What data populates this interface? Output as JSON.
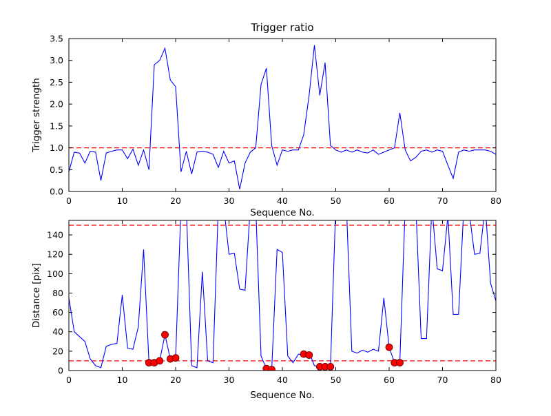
{
  "figure": {
    "background": "#ffffff"
  },
  "chart_data": [
    {
      "type": "line",
      "title": "Trigger ratio",
      "xlabel": "Sequence No.",
      "ylabel": "Trigger strength",
      "xlim": [
        0,
        80
      ],
      "ylim": [
        0,
        3.5
      ],
      "grid": false,
      "legend": "none",
      "line_color": "#0000ff",
      "threshold_color": "#ff0000",
      "hlines": [
        1.0
      ],
      "xticks": [
        0,
        10,
        20,
        30,
        40,
        50,
        60,
        70,
        80
      ],
      "xtick_labels": [
        "0",
        "10",
        "20",
        "30",
        "40",
        "50",
        "60",
        "70",
        "80"
      ],
      "yticks": [
        0,
        0.5,
        1,
        1.5,
        2,
        2.5,
        3,
        3.5
      ],
      "ytick_labels": [
        "0.0",
        "0.5",
        "1.0",
        "1.5",
        "2.0",
        "2.5",
        "3.0",
        "3.5"
      ],
      "x": [
        0,
        1,
        2,
        3,
        4,
        5,
        6,
        7,
        8,
        9,
        10,
        11,
        12,
        13,
        14,
        15,
        16,
        17,
        18,
        19,
        20,
        21,
        22,
        23,
        24,
        25,
        26,
        27,
        28,
        29,
        30,
        31,
        32,
        33,
        34,
        35,
        36,
        37,
        38,
        39,
        40,
        41,
        42,
        43,
        44,
        45,
        46,
        47,
        48,
        49,
        50,
        51,
        52,
        53,
        54,
        55,
        56,
        57,
        58,
        59,
        60,
        61,
        62,
        63,
        64,
        65,
        66,
        67,
        68,
        69,
        70,
        71,
        72,
        73,
        74,
        75,
        76,
        77,
        78,
        79,
        80
      ],
      "y": [
        0.45,
        0.9,
        0.88,
        0.65,
        0.92,
        0.9,
        0.25,
        0.88,
        0.92,
        0.95,
        0.95,
        0.75,
        0.97,
        0.6,
        0.95,
        0.5,
        2.9,
        3.0,
        3.28,
        2.55,
        2.4,
        0.45,
        0.92,
        0.4,
        0.9,
        0.92,
        0.9,
        0.85,
        0.55,
        0.92,
        0.65,
        0.7,
        0.05,
        0.65,
        0.9,
        1.0,
        2.45,
        2.82,
        1.05,
        0.6,
        0.95,
        0.92,
        0.95,
        0.95,
        1.3,
        2.2,
        3.35,
        2.2,
        2.95,
        1.05,
        0.95,
        0.9,
        0.95,
        0.9,
        0.95,
        0.9,
        0.88,
        0.95,
        0.85,
        0.9,
        0.95,
        1.0,
        1.8,
        0.95,
        0.7,
        0.78,
        0.92,
        0.95,
        0.9,
        0.95,
        0.92,
        0.6,
        0.3,
        0.9,
        0.95,
        0.92,
        0.95,
        0.95,
        0.95,
        0.92,
        0.85
      ]
    },
    {
      "type": "line",
      "title": "",
      "xlabel": "Sequence No.",
      "ylabel": "Distance [pix]",
      "xlim": [
        0,
        80
      ],
      "ylim": [
        0,
        155
      ],
      "grid": false,
      "legend": "none",
      "line_color": "#0000ff",
      "threshold_color": "#ff0000",
      "hlines": [
        150,
        10
      ],
      "xticks": [
        0,
        10,
        20,
        30,
        40,
        50,
        60,
        70,
        80
      ],
      "xtick_labels": [
        "0",
        "10",
        "20",
        "30",
        "40",
        "50",
        "60",
        "70",
        "80"
      ],
      "yticks": [
        0,
        20,
        40,
        60,
        80,
        100,
        120,
        140
      ],
      "ytick_labels": [
        "0",
        "20",
        "40",
        "60",
        "80",
        "100",
        "120",
        "140"
      ],
      "x": [
        0,
        1,
        2,
        3,
        4,
        5,
        6,
        7,
        8,
        9,
        10,
        11,
        12,
        13,
        14,
        15,
        16,
        17,
        18,
        19,
        20,
        21,
        22,
        23,
        24,
        25,
        26,
        27,
        28,
        29,
        30,
        31,
        32,
        33,
        34,
        35,
        36,
        37,
        38,
        39,
        40,
        41,
        42,
        43,
        44,
        45,
        46,
        47,
        48,
        49,
        50,
        51,
        52,
        53,
        54,
        55,
        56,
        57,
        58,
        59,
        60,
        61,
        62,
        63,
        64,
        65,
        66,
        67,
        68,
        69,
        70,
        71,
        72,
        73,
        74,
        75,
        76,
        77,
        78,
        79,
        80
      ],
      "y": [
        75,
        40,
        35,
        30,
        12,
        5,
        3,
        25,
        27,
        28,
        78,
        23,
        22,
        45,
        125,
        8,
        8,
        10,
        37,
        12,
        13,
        170,
        170,
        5,
        3,
        102,
        10,
        8,
        170,
        170,
        120,
        121,
        84,
        83,
        170,
        170,
        15,
        2,
        1,
        125,
        122,
        15,
        8,
        17,
        16,
        19,
        5,
        4,
        4,
        4,
        170,
        170,
        170,
        20,
        18,
        21,
        19,
        22,
        20,
        75,
        24,
        8,
        8,
        170,
        170,
        170,
        33,
        33,
        170,
        105,
        103,
        160,
        58,
        58,
        170,
        163,
        120,
        121,
        170,
        90,
        72
      ],
      "markers": {
        "name": "trigger-points",
        "color": "#ff0000",
        "x": [
          15,
          16,
          17,
          18,
          19,
          20,
          37,
          38,
          44,
          45,
          47,
          48,
          49,
          60,
          61,
          62
        ],
        "y": [
          8,
          8,
          10,
          37,
          12,
          13,
          2,
          1,
          17,
          16,
          4,
          4,
          4,
          24,
          8,
          8
        ]
      }
    }
  ]
}
